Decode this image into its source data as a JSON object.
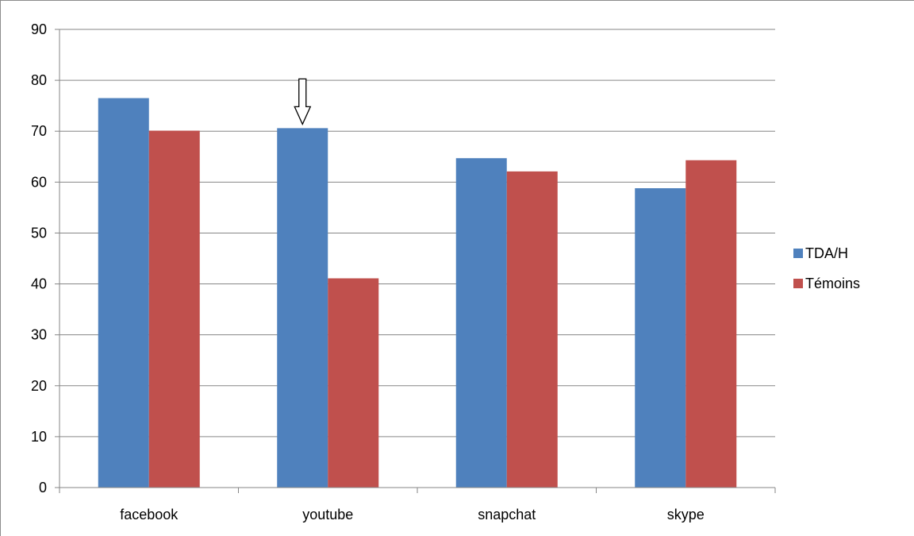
{
  "chart_data": {
    "type": "bar",
    "categories": [
      "facebook",
      "youtube",
      "snapchat",
      "skype"
    ],
    "series": [
      {
        "name": "TDA/H",
        "values": [
          76.5,
          70.6,
          64.7,
          58.8
        ],
        "color": "#4F81BD"
      },
      {
        "name": "Témoins",
        "values": [
          70.1,
          41.1,
          62.1,
          64.3
        ],
        "color": "#C0504D"
      }
    ],
    "ylim": [
      0,
      90
    ],
    "yticks": [
      0,
      10,
      20,
      30,
      40,
      50,
      60,
      70,
      80,
      90
    ],
    "grid": true,
    "legend_position": "right",
    "annotation": {
      "type": "down-arrow",
      "category": "youtube",
      "series": "TDA/H"
    }
  }
}
